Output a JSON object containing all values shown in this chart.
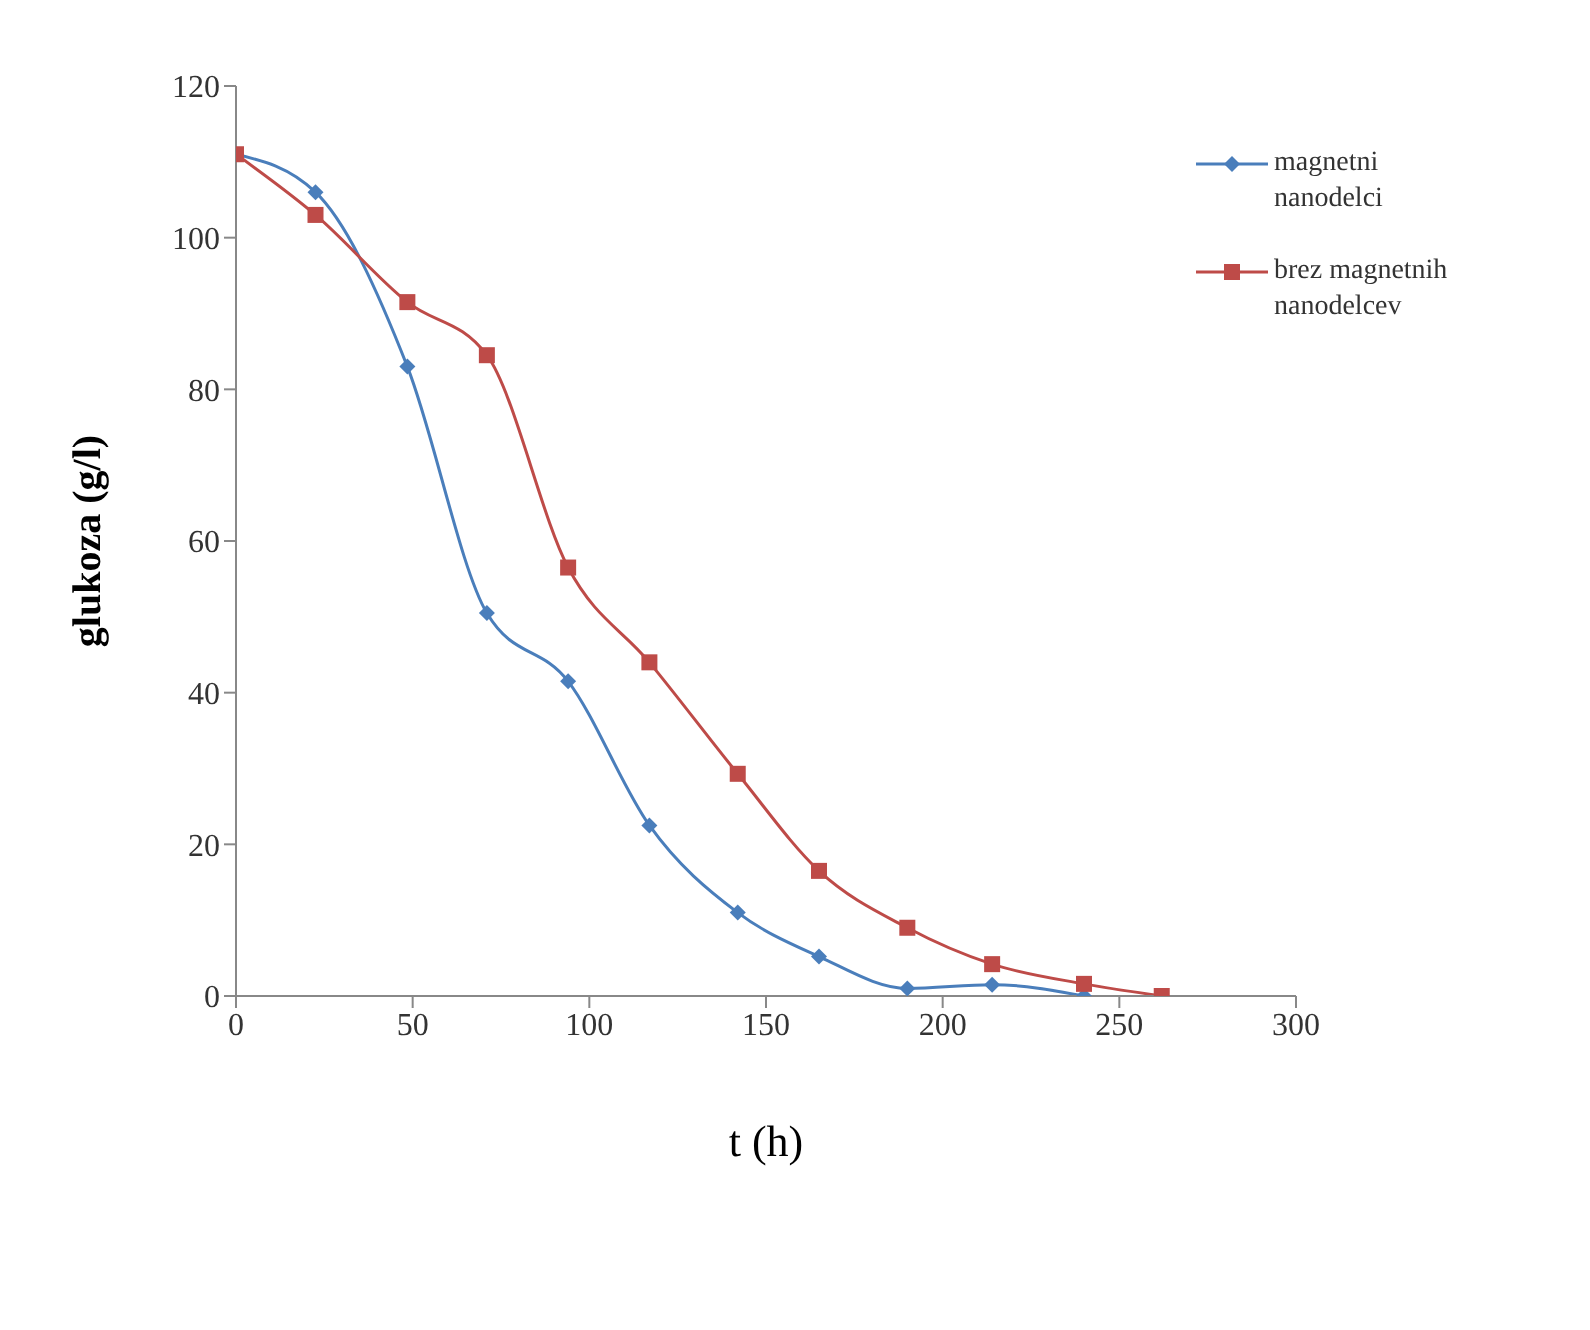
{
  "chart_data": {
    "type": "line",
    "xlabel": "t (h)",
    "ylabel": "glukoza (g/l)",
    "series": [
      {
        "name": "magnetni nanodelci",
        "color": "#4a7ebb",
        "marker": "diamond",
        "x": [
          0,
          22.5,
          48.5,
          71,
          94,
          117,
          142,
          165,
          190,
          214,
          240
        ],
        "values": [
          111,
          106,
          83,
          50.5,
          41.5,
          22.5,
          11,
          5.2,
          1,
          1.5,
          0
        ]
      },
      {
        "name": "brez magnetnih nanodelcev",
        "color": "#be4b48",
        "marker": "square",
        "x": [
          0,
          22.5,
          48.5,
          71,
          94,
          117,
          142,
          165,
          190,
          214,
          240,
          262
        ],
        "values": [
          111,
          103,
          91.5,
          84.5,
          56.5,
          44,
          29.3,
          16.5,
          9,
          4.2,
          1.6,
          0
        ]
      }
    ],
    "xlim": [
      0,
      300
    ],
    "xticks": [
      0,
      50,
      100,
      150,
      200,
      250,
      300
    ],
    "ylim": [
      0,
      120
    ],
    "yticks": [
      0,
      20,
      40,
      60,
      80,
      100,
      120
    ],
    "grid": false,
    "legend": "top right",
    "line_style": "solid"
  }
}
